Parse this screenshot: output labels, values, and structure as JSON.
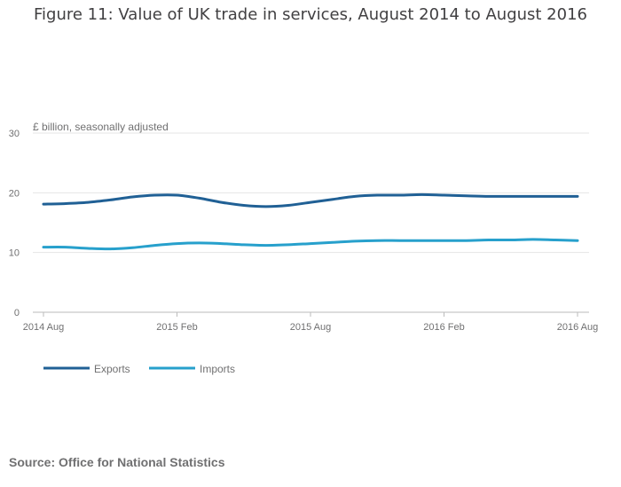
{
  "chart_data": {
    "type": "line",
    "title": "Figure 11: Value of UK trade in services, August 2014 to August 2016",
    "ylabel": "£ billion, seasonally adjusted",
    "xlabel": "",
    "ylim": [
      0,
      30
    ],
    "yticks": [
      "0",
      "10",
      "20",
      "30"
    ],
    "xticks": [
      "2014 Aug",
      "2015 Feb",
      "2015 Aug",
      "2016 Feb",
      "2016 Aug"
    ],
    "x": [
      "2014 Aug",
      "2014 Sep",
      "2014 Oct",
      "2014 Nov",
      "2014 Dec",
      "2015 Jan",
      "2015 Feb",
      "2015 Mar",
      "2015 Apr",
      "2015 May",
      "2015 Jun",
      "2015 Jul",
      "2015 Aug",
      "2015 Sep",
      "2015 Oct",
      "2015 Nov",
      "2015 Dec",
      "2016 Jan",
      "2016 Feb",
      "2016 Mar",
      "2016 Apr",
      "2016 May",
      "2016 Jun",
      "2016 Jul",
      "2016 Aug"
    ],
    "grid": true,
    "legend": "bottom-left",
    "series": [
      {
        "name": "Exports",
        "color": "#206095",
        "values": [
          18.1,
          18.2,
          18.4,
          18.8,
          19.3,
          19.6,
          19.6,
          19.1,
          18.4,
          17.9,
          17.7,
          17.9,
          18.4,
          18.9,
          19.4,
          19.6,
          19.6,
          19.7,
          19.6,
          19.5,
          19.4,
          19.4,
          19.4,
          19.4,
          19.4
        ]
      },
      {
        "name": "Imports",
        "color": "#27a0cc",
        "values": [
          10.9,
          10.9,
          10.7,
          10.6,
          10.8,
          11.2,
          11.5,
          11.6,
          11.5,
          11.3,
          11.2,
          11.3,
          11.5,
          11.7,
          11.9,
          12.0,
          12.0,
          12.0,
          12.0,
          12.0,
          12.1,
          12.1,
          12.2,
          12.1,
          12.0
        ]
      }
    ]
  },
  "source": "Source: Office for National Statistics"
}
